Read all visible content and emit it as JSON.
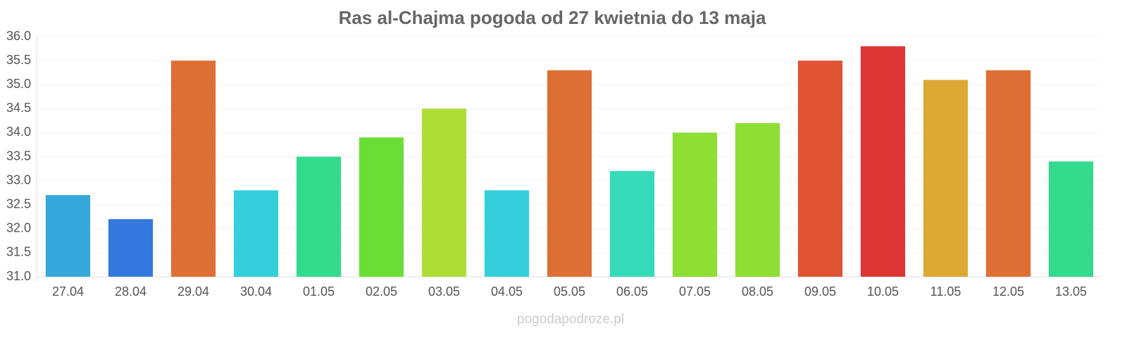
{
  "chart_data": {
    "type": "bar",
    "title": "Ras al-Chajma pogoda od 27 kwietnia do 13 maja",
    "source": "pogodapodroze.pl",
    "categories": [
      "27.04",
      "28.04",
      "29.04",
      "30.04",
      "01.05",
      "02.05",
      "03.05",
      "04.05",
      "05.05",
      "06.05",
      "07.05",
      "08.05",
      "09.05",
      "10.05",
      "11.05",
      "12.05",
      "13.05"
    ],
    "values": [
      32.7,
      32.2,
      35.5,
      32.8,
      33.5,
      33.9,
      34.5,
      32.8,
      35.3,
      33.2,
      34.0,
      34.2,
      35.5,
      35.8,
      35.1,
      35.3,
      33.4
    ],
    "colors": [
      "#36a8dc",
      "#3578de",
      "#de6f34",
      "#35cfdc",
      "#33da8c",
      "#6ade35",
      "#aede35",
      "#35cfdc",
      "#de6f34",
      "#35dbb8",
      "#8ede35",
      "#8ede35",
      "#de5435",
      "#de3535",
      "#dea835",
      "#de6f34",
      "#33da8c"
    ],
    "ylim": [
      31,
      36
    ],
    "yticks": [
      {
        "value": 31,
        "label": "31.0"
      },
      31.5,
      {
        "value": 32,
        "label": "32.0"
      },
      32.5,
      {
        "value": 33,
        "label": "33.0"
      },
      33.5,
      {
        "value": 34,
        "label": "34.0"
      },
      34.5,
      {
        "value": 35,
        "label": "35.0"
      },
      35.5,
      {
        "value": 36,
        "label": "36.0"
      }
    ],
    "grid": true
  }
}
